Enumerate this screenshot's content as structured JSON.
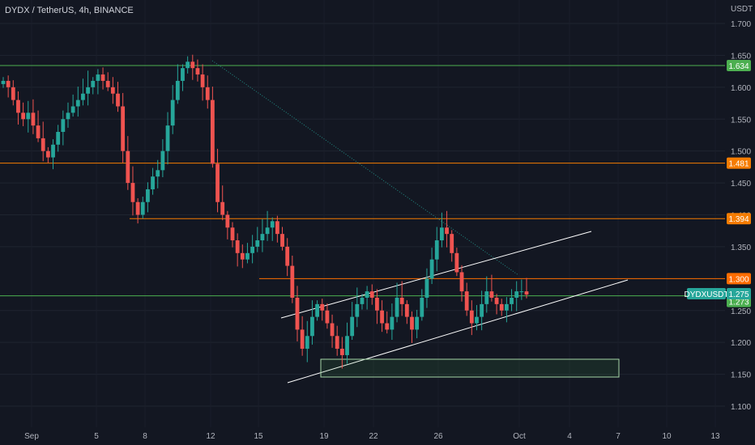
{
  "chart_data": {
    "type": "candlestick",
    "title": "DYDX / TetherUS, 4h, BINANCE",
    "currency": "USDT",
    "symbol": "DYDXUSDT",
    "y_ticks": [
      "1.700",
      "1.650",
      "1.600",
      "1.550",
      "1.500",
      "1.450",
      "1.400",
      "1.350",
      "1.250",
      "1.200",
      "1.150",
      "1.100"
    ],
    "ylim": [
      1.09,
      1.72
    ],
    "x_ticks": [
      "Sep",
      "5",
      "8",
      "12",
      "15",
      "19",
      "22",
      "26",
      "Oct",
      "4",
      "7",
      "10",
      "13"
    ],
    "horizontal_levels": [
      {
        "label": "1.634",
        "value": 1.634,
        "color": "#4caf50"
      },
      {
        "label": "1.481",
        "value": 1.481,
        "color": "#f57c00"
      },
      {
        "label": "1.394",
        "value": 1.394,
        "color": "#f57c00"
      },
      {
        "label": "1.300",
        "value": 1.3,
        "color": "#ff6d00"
      },
      {
        "label": "1.273",
        "value": 1.273,
        "color": "#4caf50"
      }
    ],
    "last_price": {
      "label": "1.275",
      "value": 1.275,
      "color": "#26a69a"
    },
    "up_color": "#26a69a",
    "down_color": "#ef5350",
    "closes": [
      1.61,
      1.6,
      1.58,
      1.56,
      1.55,
      1.56,
      1.54,
      1.52,
      1.5,
      1.49,
      1.51,
      1.53,
      1.55,
      1.56,
      1.57,
      1.58,
      1.59,
      1.6,
      1.61,
      1.62,
      1.61,
      1.6,
      1.59,
      1.57,
      1.5,
      1.45,
      1.42,
      1.4,
      1.42,
      1.44,
      1.46,
      1.47,
      1.5,
      1.54,
      1.58,
      1.61,
      1.63,
      1.64,
      1.63,
      1.62,
      1.6,
      1.58,
      1.48,
      1.42,
      1.4,
      1.38,
      1.36,
      1.34,
      1.33,
      1.34,
      1.35,
      1.36,
      1.37,
      1.38,
      1.39,
      1.37,
      1.35,
      1.32,
      1.27,
      1.22,
      1.19,
      1.21,
      1.24,
      1.26,
      1.25,
      1.23,
      1.21,
      1.19,
      1.18,
      1.21,
      1.24,
      1.26,
      1.27,
      1.28,
      1.27,
      1.25,
      1.23,
      1.22,
      1.24,
      1.27,
      1.26,
      1.24,
      1.22,
      1.24,
      1.27,
      1.3,
      1.33,
      1.36,
      1.38,
      1.37,
      1.34,
      1.31,
      1.28,
      1.25,
      1.23,
      1.24,
      1.26,
      1.28,
      1.27,
      1.26,
      1.25,
      1.26,
      1.27,
      1.28,
      1.28,
      1.275
    ]
  }
}
